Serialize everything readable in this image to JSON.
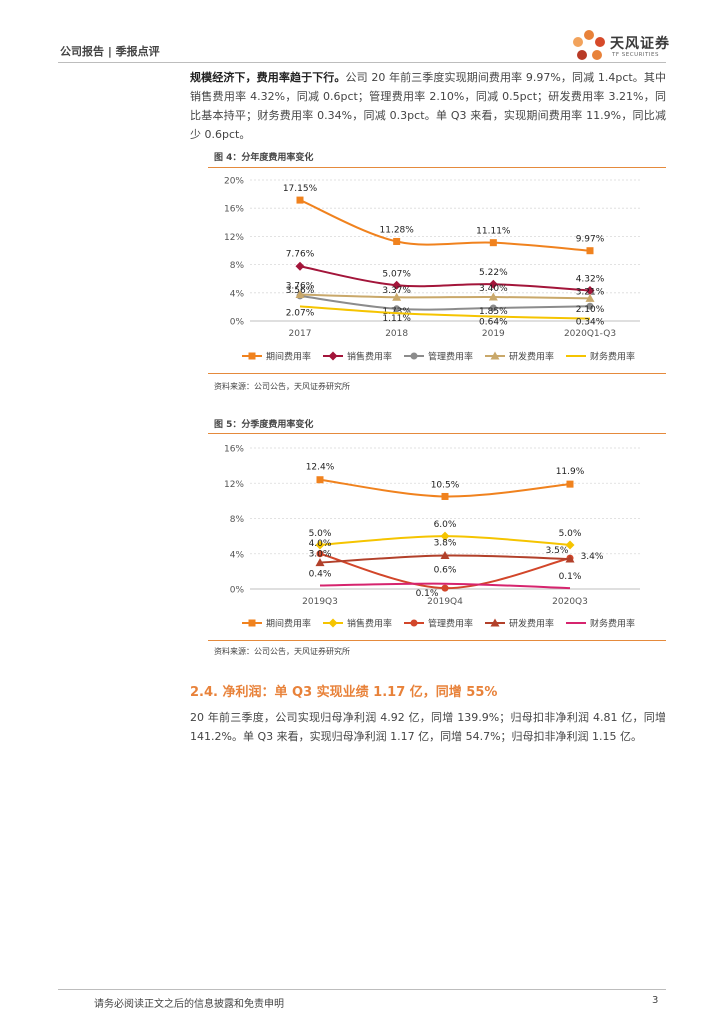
{
  "header": {
    "left": "公司报告 | 季报点评",
    "logo_text": "天风证券",
    "logo_sub": "TF SECURITIES",
    "accent_color": "#e8823a"
  },
  "para1": {
    "lead": "规模经济下，费用率趋于下行。",
    "body": "公司 20 年前三季度实现期间费用率 9.97%，同减 1.4pct。其中销售费用率 4.32%，同减 0.6pct；管理费用率 2.10%，同减 0.5pct；研发费用率 3.21%，同比基本持平；财务费用率 0.34%，同减 0.3pct。单 Q3 来看，实现期间费用率 11.9%，同比减少 0.6pct。"
  },
  "figure4": {
    "title": "图 4：分年度费用率变化",
    "source": "资料来源：公司公告，天风证券研究所"
  },
  "figure5": {
    "title": "图 5：分季度费用率变化",
    "source": "资料来源：公司公告，天风证券研究所"
  },
  "section": {
    "title": "2.4. 净利润：单 Q3 实现业绩 1.17 亿，同增 55%"
  },
  "para2": {
    "body": "20 年前三季度，公司实现归母净利润 4.92 亿，同增 139.9%；归母扣非净利润 4.81 亿，同增 141.2%。单 Q3 来看，实现归母净利润 1.17 亿，同增 54.7%；归母扣非净利润 1.15 亿。"
  },
  "footer": {
    "disclaimer": "请务必阅读正文之后的信息披露和免责申明",
    "page": "3"
  },
  "chart_data": [
    {
      "type": "line",
      "title": "图 4：分年度费用率变化",
      "categories": [
        "2017",
        "2018",
        "2019",
        "2020Q1-Q3"
      ],
      "y_ticks": [
        "20%",
        "16%",
        "12%",
        "8%",
        "4%",
        "0%"
      ],
      "ylim": [
        0,
        20
      ],
      "series": [
        {
          "name": "期间费用率",
          "color": "#f0821e",
          "marker": "square",
          "values": [
            17.15,
            11.28,
            11.11,
            9.97
          ],
          "labels": [
            "17.15%",
            "11.28%",
            "11.11%",
            "9.97%"
          ]
        },
        {
          "name": "销售费用率",
          "color": "#a3153a",
          "marker": "diamond",
          "values": [
            7.76,
            5.07,
            5.22,
            4.32
          ],
          "labels": [
            "7.76%",
            "5.07%",
            "5.22%",
            "4.32%"
          ]
        },
        {
          "name": "管理费用率",
          "color": "#8c8c8c",
          "marker": "circle",
          "values": [
            3.56,
            1.73,
            1.85,
            2.1
          ],
          "labels": [
            "3.56%",
            "1.73%",
            "1.85%",
            "2.10%"
          ]
        },
        {
          "name": "研发费用率",
          "color": "#c9a86a",
          "marker": "triangle",
          "values": [
            3.76,
            3.37,
            3.4,
            3.21
          ],
          "labels": [
            "3.76%",
            "3.37%",
            "3.40%",
            "3.21%"
          ]
        },
        {
          "name": "财务费用率",
          "color": "#f5c400",
          "marker": "none",
          "values": [
            2.07,
            1.11,
            0.64,
            0.34
          ],
          "labels": [
            "2.07%",
            "1.11%",
            "0.64%",
            "0.34%"
          ]
        }
      ]
    },
    {
      "type": "line",
      "title": "图 5：分季度费用率变化",
      "categories": [
        "2019Q3",
        "2019Q4",
        "2020Q3"
      ],
      "y_ticks": [
        "16%",
        "12%",
        "8%",
        "4%",
        "0%"
      ],
      "ylim": [
        0,
        16
      ],
      "series": [
        {
          "name": "期间费用率",
          "color": "#f0821e",
          "marker": "square",
          "values": [
            12.4,
            10.5,
            11.9
          ],
          "labels": [
            "12.4%",
            "10.5%",
            "11.9%"
          ]
        },
        {
          "name": "销售费用率",
          "color": "#f5c400",
          "marker": "diamond",
          "values": [
            5.0,
            6.0,
            5.0
          ],
          "labels": [
            "5.0%",
            "6.0%",
            "5.0%"
          ]
        },
        {
          "name": "管理费用率",
          "color": "#d2462a",
          "marker": "circle",
          "values": [
            4.0,
            0.1,
            3.5
          ],
          "labels": [
            "4.0%",
            "0.1%",
            "3.5%"
          ]
        },
        {
          "name": "研发费用率",
          "color": "#b2402a",
          "marker": "triangle",
          "values": [
            3.0,
            3.8,
            3.4
          ],
          "labels": [
            "3.0%",
            "3.8%",
            "3.4%"
          ]
        },
        {
          "name": "财务费用率",
          "color": "#d6246e",
          "marker": "none",
          "values": [
            0.4,
            0.6,
            0.1
          ],
          "labels": [
            "0.4%",
            "0.6%",
            "0.1%"
          ]
        }
      ]
    }
  ]
}
